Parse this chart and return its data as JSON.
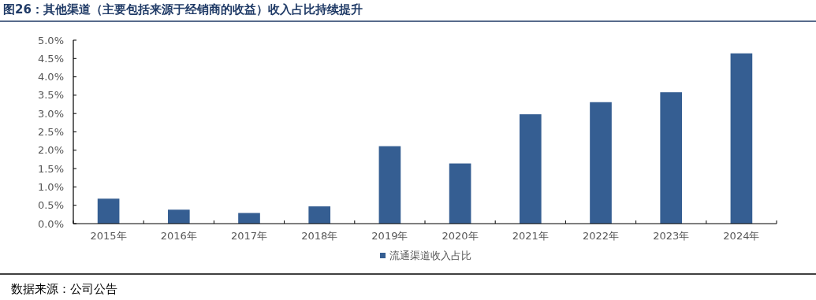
{
  "chart_data": {
    "type": "bar",
    "title": "图26：其他渠道（主要包括来源于经销商的收益）收入占比持续提升",
    "categories": [
      "2015年",
      "2016年",
      "2017年",
      "2018年",
      "2019年",
      "2020年",
      "2021年",
      "2022年",
      "2023年",
      "2024年"
    ],
    "series": [
      {
        "name": "流通渠道收入占比",
        "color": "#355e92",
        "values": [
          0.68,
          0.38,
          0.29,
          0.47,
          2.11,
          1.64,
          2.98,
          3.31,
          3.58,
          4.64
        ]
      }
    ],
    "ylim": [
      0,
      5
    ],
    "yticks": [
      {
        "value": 0,
        "label": "0.0%"
      },
      {
        "value": 0.5,
        "label": "0.5%"
      },
      {
        "value": 1,
        "label": "1.0%"
      },
      {
        "value": 1.5,
        "label": "1.5%"
      },
      {
        "value": 2,
        "label": "2.0%"
      },
      {
        "value": 2.5,
        "label": "2.5%"
      },
      {
        "value": 3,
        "label": "3.0%"
      },
      {
        "value": 3.5,
        "label": "3.5%"
      },
      {
        "value": 4,
        "label": "4.0%"
      },
      {
        "value": 4.5,
        "label": "4.5%"
      },
      {
        "value": 5,
        "label": "5.0%"
      }
    ],
    "grid": false,
    "legend": "bottom",
    "annotations": [
      "数据来源：公司公告"
    ]
  }
}
